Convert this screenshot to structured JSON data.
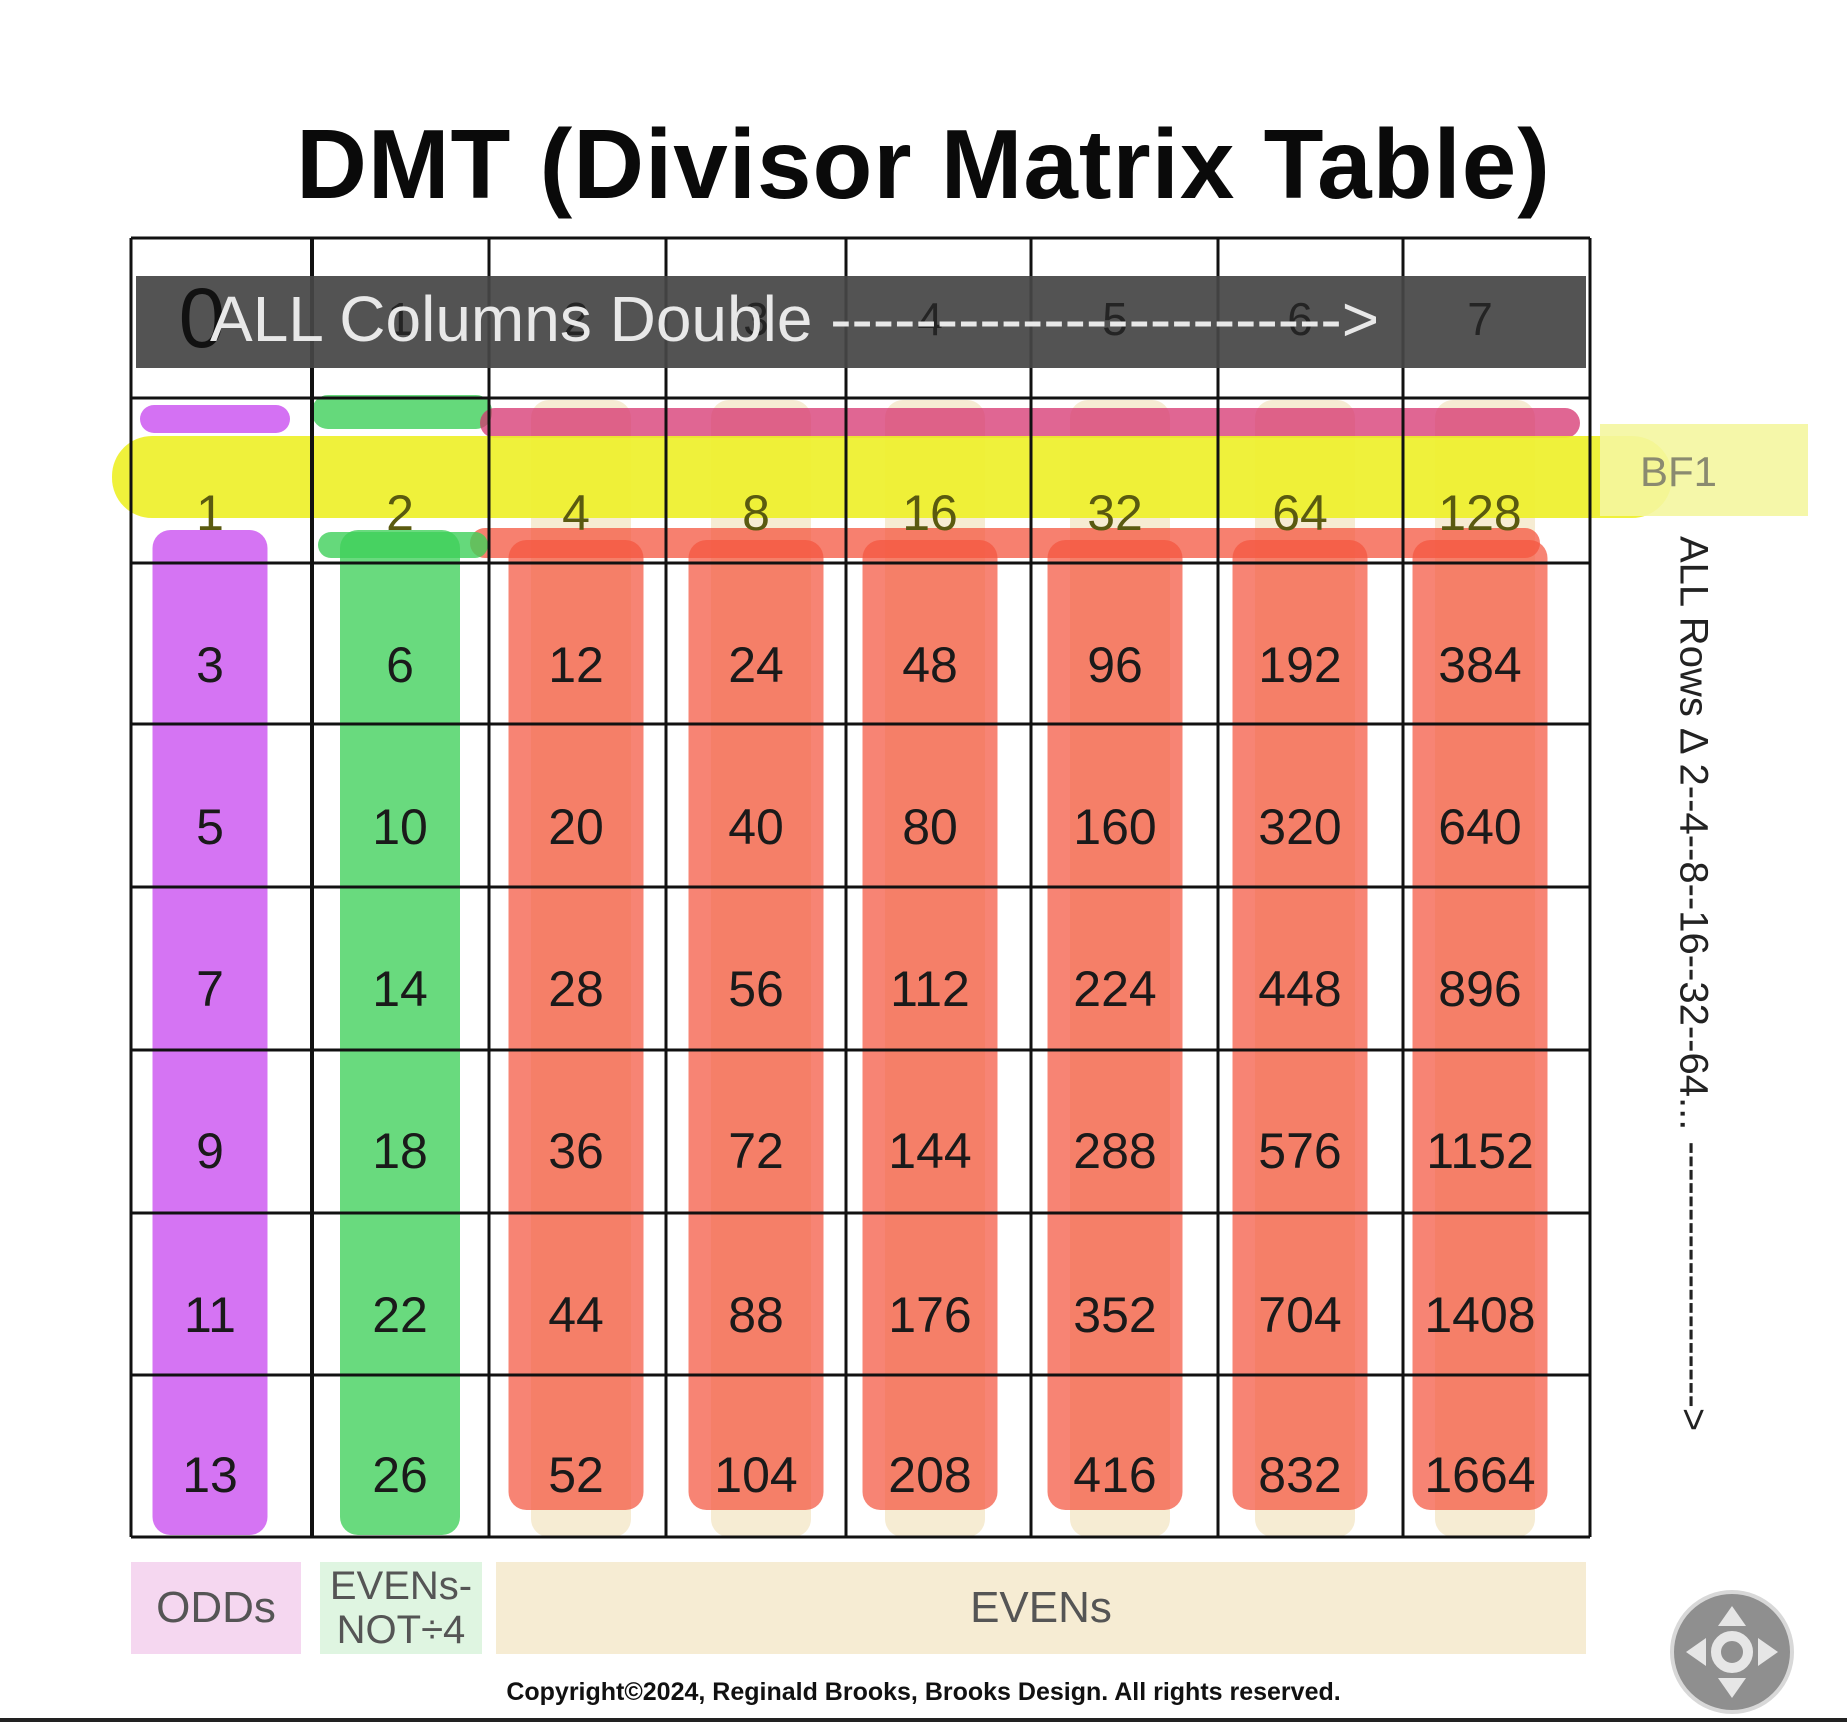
{
  "title": "DMT (Divisor Matrix Table)",
  "banner": "ALL Columns Double ------------------------>",
  "column_indices": [
    "0",
    "1",
    "2",
    "3",
    "4",
    "5",
    "6",
    "7"
  ],
  "rows": [
    [
      "1",
      "2",
      "4",
      "8",
      "16",
      "32",
      "64",
      "128"
    ],
    [
      "3",
      "6",
      "12",
      "24",
      "48",
      "96",
      "192",
      "384"
    ],
    [
      "5",
      "10",
      "20",
      "40",
      "80",
      "160",
      "320",
      "640"
    ],
    [
      "7",
      "14",
      "28",
      "56",
      "112",
      "224",
      "448",
      "896"
    ],
    [
      "9",
      "18",
      "36",
      "72",
      "144",
      "288",
      "576",
      "1152"
    ],
    [
      "11",
      "22",
      "44",
      "88",
      "176",
      "352",
      "704",
      "1408"
    ],
    [
      "13",
      "26",
      "52",
      "104",
      "208",
      "416",
      "832",
      "1664"
    ]
  ],
  "side_labels": {
    "bf1": "BF1",
    "rows": "ALL Rows Δ 2--4--8--16--32--64... -------------------->"
  },
  "footer": {
    "odds": "ODDs",
    "evens_not_line1": "EVENs-",
    "evens_not_line2": "NOT÷4",
    "evens": "EVENs"
  },
  "copyright": "Copyright©2024, Reginald Brooks, Brooks Design. All rights reserved.",
  "colors": {
    "odds_purple": "#c94df0",
    "evens_not4_green": "#3fcf5a",
    "evens_red": "#f4553f",
    "bf1_yellow": "#eef02a",
    "top_magenta": "#d6336f"
  },
  "icons": {
    "nav": "pan-control-icon"
  }
}
